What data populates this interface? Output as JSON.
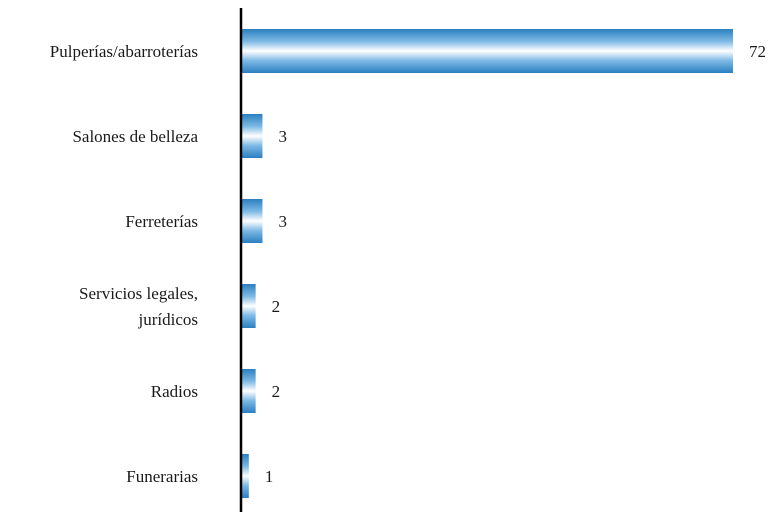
{
  "chart_data": {
    "type": "bar",
    "orientation": "horizontal",
    "title": "",
    "xlabel": "",
    "ylabel": "",
    "categories": [
      [
        "Pulperías/abarroterías"
      ],
      [
        "Salones de belleza"
      ],
      [
        "Ferreterías"
      ],
      [
        "Servicios legales,",
        "jurídicos"
      ],
      [
        "Radios"
      ],
      [
        "Funerarias"
      ]
    ],
    "values": [
      72,
      3,
      3,
      2,
      2,
      1
    ],
    "xlim": [
      0,
      72
    ],
    "grid": false,
    "legend": "none",
    "colors": {
      "bar_edge": "#2a7fc0",
      "bar_mid": "#a9d2ef",
      "bar_center": "#ffffff",
      "axis": "#000000"
    }
  }
}
